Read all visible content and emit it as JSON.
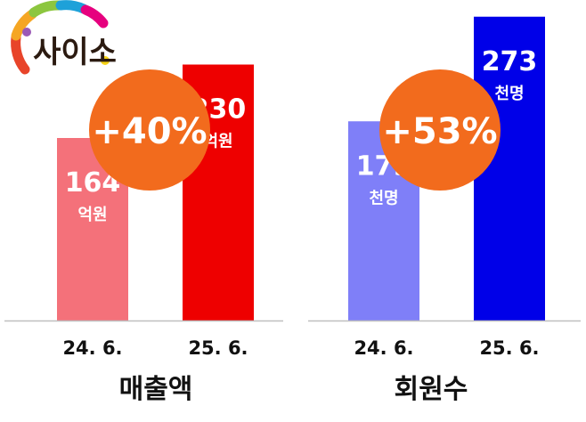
{
  "logo": {
    "text": "사이소",
    "colors": [
      "#e8442a",
      "#f5a623",
      "#8cc63f",
      "#1ea1d9",
      "#e6007e",
      "#9b59b6",
      "#f7d417"
    ]
  },
  "chart_data": [
    {
      "type": "bar",
      "title": "매출액",
      "categories": [
        "24. 6.",
        "25. 6."
      ],
      "values": [
        164,
        230
      ],
      "unit": "억원",
      "value_labels": [
        "164",
        "230"
      ],
      "colors": [
        "#f4717a",
        "#ee0000"
      ],
      "change_badge": "+40%",
      "badge_color": "#f26b1d",
      "ylim": [
        0,
        280
      ],
      "grid": false
    },
    {
      "type": "bar",
      "title": "회원수",
      "categories": [
        "24. 6.",
        "25. 6."
      ],
      "values": [
        179,
        273
      ],
      "unit": "천명",
      "value_labels": [
        "179",
        "273"
      ],
      "colors": [
        "#7f7ff8",
        "#0000e8"
      ],
      "change_badge": "+53%",
      "badge_color": "#f26b1d",
      "ylim": [
        0,
        280
      ],
      "grid": false
    }
  ]
}
